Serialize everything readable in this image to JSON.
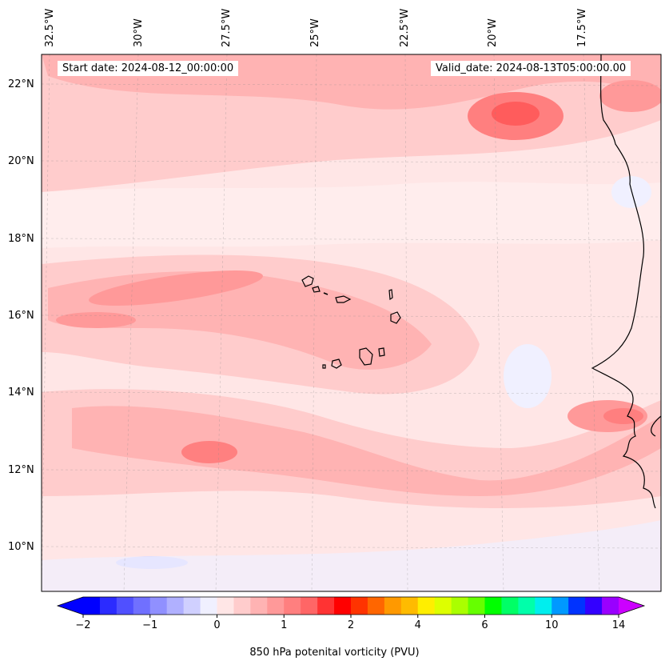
{
  "map": {
    "start_date": "Start date: 2024-08-12_00:00:00",
    "valid_date": "Valid_date: 2024-08-13T05:00:00.00",
    "lon_labels": [
      "32.5°W",
      "30°W",
      "27.5°W",
      "25°W",
      "22.5°W",
      "20°W",
      "17.5°W"
    ],
    "lat_labels": [
      "22°N",
      "20°N",
      "18°N",
      "16°N",
      "14°N",
      "12°N",
      "10°N"
    ]
  },
  "colorbar": {
    "label": "850 hPa potenital vorticity (PVU)",
    "ticks": [
      "−2",
      "−1",
      "0",
      "1",
      "2",
      "4",
      "6",
      "10",
      "14"
    ],
    "colors": [
      "#0000ff",
      "#2b2bff",
      "#5050ff",
      "#7070ff",
      "#9090ff",
      "#b0b0ff",
      "#d0d0ff",
      "#f0f0ff",
      "#ffe6e6",
      "#ffcccc",
      "#ffb3b3",
      "#ff9999",
      "#ff7f7f",
      "#ff6666",
      "#ff3333",
      "#ff0000",
      "#ff3300",
      "#ff6600",
      "#ff9900",
      "#ffbb00",
      "#ffee00",
      "#ddff00",
      "#aaff00",
      "#66ff00",
      "#00ff00",
      "#00ff66",
      "#00ffaa",
      "#00eeee",
      "#0099ff",
      "#0033ff",
      "#3300ff",
      "#9900ff"
    ],
    "under_color": "#0000ff",
    "over_color": "#cc00ff"
  }
}
